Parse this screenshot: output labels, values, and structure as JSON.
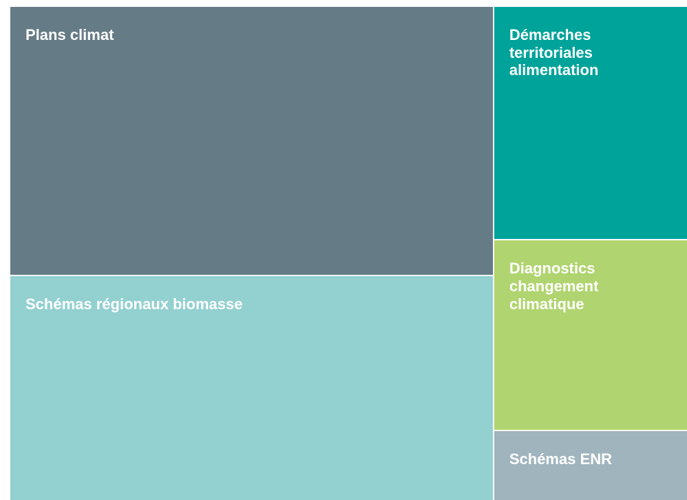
{
  "chart_data": {
    "type": "treemap",
    "categories": [
      "Plans climat",
      "Schémas régionaux biomasse",
      "Démarches territoriales alimentation",
      "Diagnostics changement climatique",
      "Schémas ENR"
    ],
    "values": [
      39,
      32.5,
      13.5,
      11,
      4
    ],
    "colors": [
      "#657b86",
      "#93d0d0",
      "#00a39a",
      "#b0d46f",
      "#a0b4be"
    ]
  }
}
